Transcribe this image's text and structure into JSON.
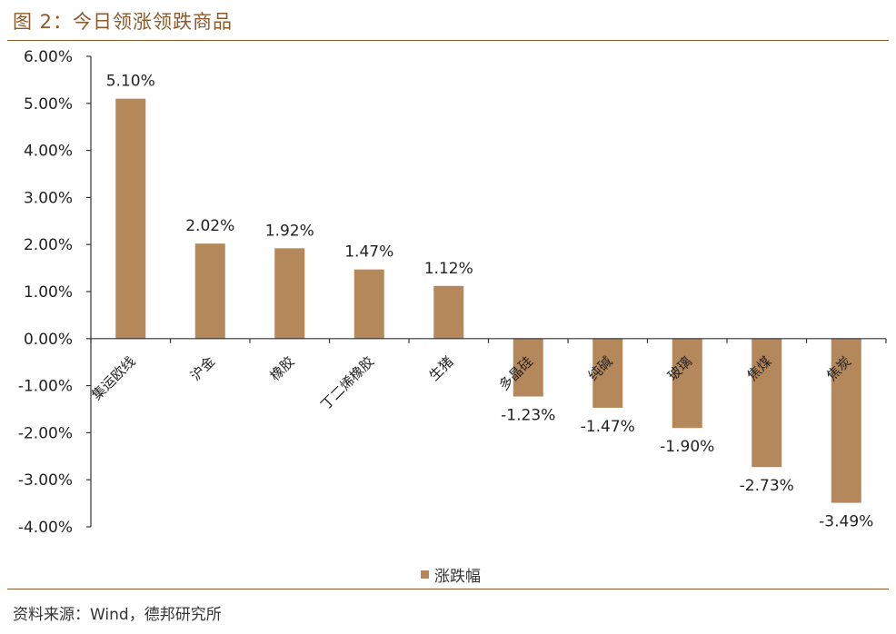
{
  "header": {
    "title": "图 2：今日领涨领跌商品"
  },
  "chart_data": {
    "type": "bar",
    "title": "今日领涨领跌商品",
    "categories": [
      "集运欧线",
      "沪金",
      "橡胶",
      "丁二烯橡胶",
      "生猪",
      "多晶硅",
      "纯碱",
      "玻璃",
      "焦煤",
      "焦炭"
    ],
    "series": [
      {
        "name": "涨跌幅",
        "values": [
          5.1,
          2.02,
          1.92,
          1.47,
          1.12,
          -1.23,
          -1.47,
          -1.9,
          -2.73,
          -3.49
        ]
      }
    ],
    "data_labels": [
      "5.10%",
      "2.02%",
      "1.92%",
      "1.47%",
      "1.12%",
      "-1.23%",
      "-1.47%",
      "-1.90%",
      "-2.73%",
      "-3.49%"
    ],
    "yticks": [
      6,
      5,
      4,
      3,
      2,
      1,
      0,
      -1,
      -2,
      -3,
      -4
    ],
    "ytick_labels": [
      "6.00%",
      "5.00%",
      "4.00%",
      "3.00%",
      "2.00%",
      "1.00%",
      "0.00%",
      "-1.00%",
      "-2.00%",
      "-3.00%",
      "-4.00%"
    ],
    "ylim": [
      -4,
      6
    ],
    "xlabel": "",
    "ylabel": "",
    "legend": {
      "entries": [
        "涨跌幅"
      ],
      "placement": "bottom-center"
    },
    "colors": {
      "bar": "#B5885B",
      "axis": "#333333",
      "accent": "#8B5A2B"
    }
  },
  "footer": {
    "source": "资料来源：Wind，德邦研究所"
  }
}
